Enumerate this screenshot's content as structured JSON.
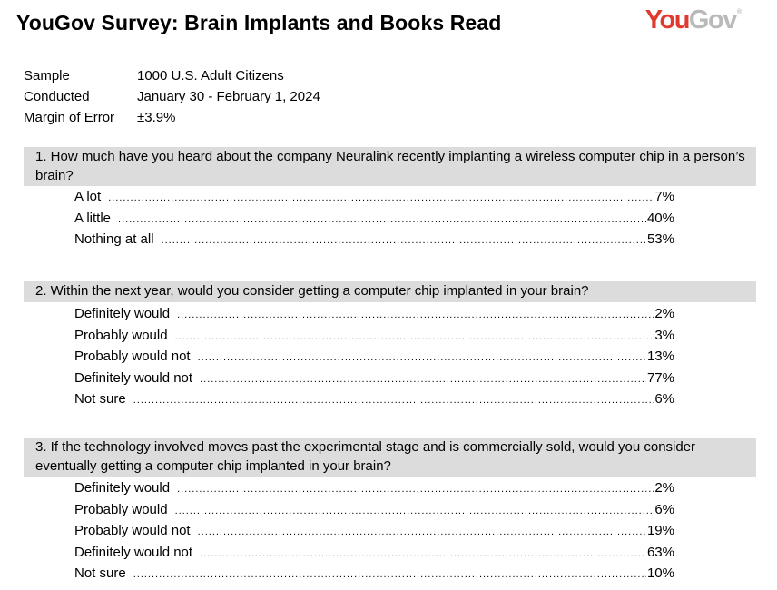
{
  "header": {
    "title": "YouGov Survey: Brain Implants and Books Read",
    "logo_you": "You",
    "logo_gov": "Gov",
    "logo_mark": "®"
  },
  "meta": [
    {
      "label": "Sample",
      "value": "1000 U.S. Adult Citizens"
    },
    {
      "label": "Conducted",
      "value": "January 30 - February 1, 2024"
    },
    {
      "label": "Margin of Error",
      "value": "±3.9%"
    }
  ],
  "questions": [
    {
      "text": "1.  How much have you heard about the company Neuralink recently implanting a wireless computer chip in a person’s brain?",
      "answers": [
        {
          "label": "A lot",
          "value": "7%"
        },
        {
          "label": "A little",
          "value": "40%"
        },
        {
          "label": "Nothing at all",
          "value": "53%"
        }
      ]
    },
    {
      "text": "2.  Within the next year, would you consider getting a computer chip implanted in your brain?",
      "answers": [
        {
          "label": "Definitely would",
          "value": "2%"
        },
        {
          "label": "Probably would",
          "value": "3%"
        },
        {
          "label": "Probably would not",
          "value": "13%"
        },
        {
          "label": "Definitely would not",
          "value": "77%"
        },
        {
          "label": "Not sure",
          "value": "6%"
        }
      ]
    },
    {
      "text": "3.  If the technology involved moves past the experimental stage and is commercially sold, would you consider eventually getting a computer chip implanted in your brain?",
      "answers": [
        {
          "label": "Definitely would",
          "value": "2%"
        },
        {
          "label": "Probably would",
          "value": "6%"
        },
        {
          "label": "Probably would not",
          "value": "19%"
        },
        {
          "label": "Definitely would not",
          "value": "63%"
        },
        {
          "label": "Not sure",
          "value": "10%"
        }
      ]
    }
  ]
}
